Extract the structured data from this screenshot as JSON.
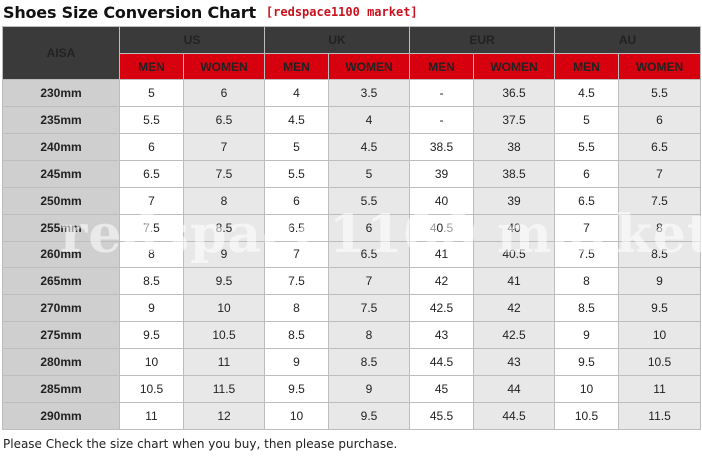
{
  "header": {
    "title": "Shoes Size Conversion Chart",
    "tag": "[redspace1100 market]"
  },
  "table": {
    "corner_label": "AISA",
    "regions": [
      "US",
      "UK",
      "EUR",
      "AU"
    ],
    "men_label": "MEN",
    "women_label": "WOMEN",
    "rows": [
      {
        "size": "230mm",
        "cells": [
          "5",
          "6",
          "4",
          "3.5",
          "-",
          "36.5",
          "4.5",
          "5.5"
        ]
      },
      {
        "size": "235mm",
        "cells": [
          "5.5",
          "6.5",
          "4.5",
          "4",
          "-",
          "37.5",
          "5",
          "6"
        ]
      },
      {
        "size": "240mm",
        "cells": [
          "6",
          "7",
          "5",
          "4.5",
          "38.5",
          "38",
          "5.5",
          "6.5"
        ]
      },
      {
        "size": "245mm",
        "cells": [
          "6.5",
          "7.5",
          "5.5",
          "5",
          "39",
          "38.5",
          "6",
          "7"
        ]
      },
      {
        "size": "250mm",
        "cells": [
          "7",
          "8",
          "6",
          "5.5",
          "40",
          "39",
          "6.5",
          "7.5"
        ]
      },
      {
        "size": "255mm",
        "cells": [
          "7.5",
          "8.5",
          "6.5",
          "6",
          "40.5",
          "40",
          "7",
          "8"
        ]
      },
      {
        "size": "260mm",
        "cells": [
          "8",
          "9",
          "7",
          "6.5",
          "41",
          "40.5",
          "7.5",
          "8.5"
        ]
      },
      {
        "size": "265mm",
        "cells": [
          "8.5",
          "9.5",
          "7.5",
          "7",
          "42",
          "41",
          "8",
          "9"
        ]
      },
      {
        "size": "270mm",
        "cells": [
          "9",
          "10",
          "8",
          "7.5",
          "42.5",
          "42",
          "8.5",
          "9.5"
        ]
      },
      {
        "size": "275mm",
        "cells": [
          "9.5",
          "10.5",
          "8.5",
          "8",
          "43",
          "42.5",
          "9",
          "10"
        ]
      },
      {
        "size": "280mm",
        "cells": [
          "10",
          "11",
          "9",
          "8.5",
          "44.5",
          "43",
          "9.5",
          "10.5"
        ]
      },
      {
        "size": "285mm",
        "cells": [
          "10.5",
          "11.5",
          "9.5",
          "9",
          "45",
          "44",
          "10",
          "11"
        ]
      },
      {
        "size": "290mm",
        "cells": [
          "11",
          "12",
          "10",
          "9.5",
          "45.5",
          "44.5",
          "10.5",
          "11.5"
        ]
      }
    ]
  },
  "watermark": "redspace1100 market",
  "footer": "Please Check the size chart when you buy, then please purchase.",
  "colors": {
    "header_dark": "#3a3a3a",
    "header_red": "#d7000f",
    "size_col": "#cfcfcf",
    "cell_light": "#ffffff",
    "cell_dark": "#e8e8e8",
    "tag_red": "#c8131e"
  }
}
